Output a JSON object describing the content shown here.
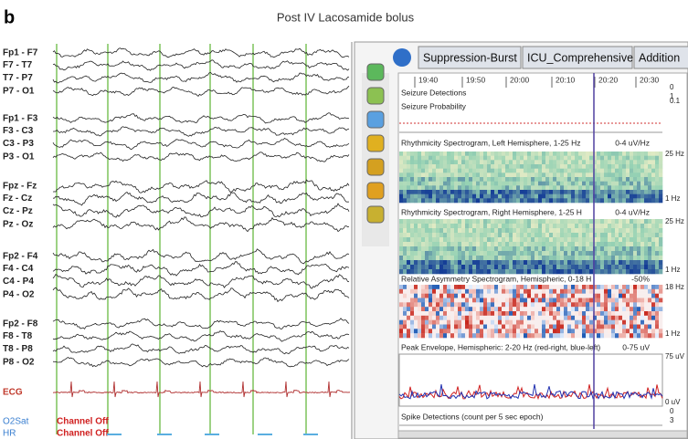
{
  "figure": {
    "label": "b",
    "title": "Post IV Lacosamide bolus"
  },
  "eeg": {
    "channels": [
      "Fp1 - F7",
      "F7 - T7",
      "T7 - P7",
      "P7 - O1",
      "Fp1 - F3",
      "F3 - C3",
      "C3 - P3",
      "P3 - O1",
      "Fpz - Fz",
      "Fz - Cz",
      "Cz - Pz",
      "Pz - Oz",
      "Fp2 - F4",
      "F4 - C4",
      "C4 - P4",
      "P4 - O2",
      "Fp2 - F8",
      "F8 - T8",
      "T8 - P8",
      "P8 - O2"
    ],
    "ecg": "ECG",
    "o2sat": "O2Sat",
    "hr": "HR",
    "channel_off": [
      "Channel Off",
      "Channel Off"
    ]
  },
  "trend": {
    "tabs": [
      "Suppression-Burst",
      "ICU_Comprehensive",
      "Addition"
    ],
    "times": [
      "19:40",
      "19:50",
      "20:00",
      "20:10",
      "20:20",
      "20:30"
    ],
    "panels": [
      {
        "title": "Seizure Detections",
        "scale": [
          "0",
          "1"
        ]
      },
      {
        "title": "Seizure Probability",
        "scale": [
          "0.1"
        ]
      },
      {
        "title": "Rhythmicity Spectrogram, Left Hemisphere, 1-25 Hz",
        "range": "0-4 uV/Hz",
        "scale": [
          "25 Hz",
          "1 Hz"
        ]
      },
      {
        "title": "Rhythmicity Spectrogram, Right Hemisphere, 1-25 H",
        "range": "0-4 uV/Hz",
        "scale": [
          "25 Hz",
          "1 Hz"
        ]
      },
      {
        "title": "Relative Asymmetry Spectrogram, Hemispheric, 0-18 H",
        "range": "-50%",
        "scale": [
          "18 Hz",
          "1 Hz"
        ]
      },
      {
        "title": "Peak Envelope, Hemispheric: 2-20 Hz (red-right, blue-left)",
        "range": "0-75 uV",
        "scale": [
          "75 uV",
          "0 uV"
        ]
      },
      {
        "title": "Spike Detections (count per 5 sec epoch)",
        "scale": [
          "0",
          "3"
        ]
      }
    ]
  }
}
